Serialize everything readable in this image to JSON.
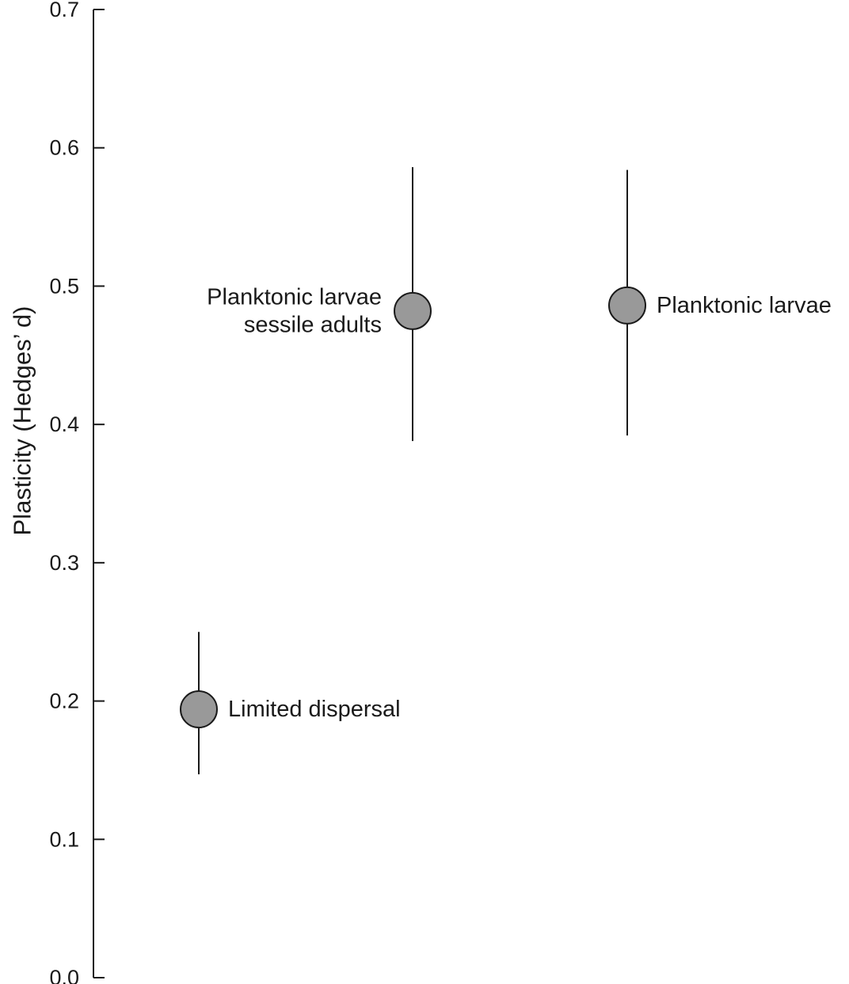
{
  "chart_data": {
    "type": "scatter",
    "title": "",
    "xlabel": "",
    "ylabel": "Plasticity (Hedges’ d)",
    "ylim": [
      0.0,
      0.7
    ],
    "yticks": [
      "0.0",
      "0.1",
      "0.2",
      "0.3",
      "0.4",
      "0.5",
      "0.6",
      "0.7"
    ],
    "grid": false,
    "legend": "none",
    "marker_color": "#999999",
    "series": [
      {
        "values": [
          {
            "category": 1,
            "y": 0.194,
            "lower": 0.147,
            "upper": 0.25,
            "label": [
              "Limited dispersal"
            ],
            "label_side": "right"
          },
          {
            "category": 2,
            "y": 0.482,
            "lower": 0.388,
            "upper": 0.586,
            "label": [
              "Planktonic larvae",
              "sessile adults"
            ],
            "label_side": "left"
          },
          {
            "category": 3,
            "y": 0.486,
            "lower": 0.392,
            "upper": 0.584,
            "label": [
              "Planktonic larvae"
            ],
            "label_side": "right"
          }
        ]
      }
    ]
  }
}
